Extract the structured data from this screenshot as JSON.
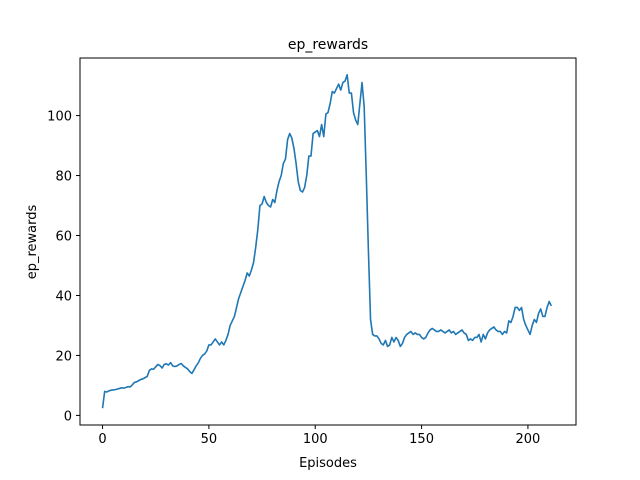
{
  "chart_data": {
    "type": "line",
    "title": "ep_rewards",
    "x_label": "Episodes",
    "y_label": "ep_rewards",
    "xlim": [
      -10.6,
      222.6
    ],
    "ylim": [
      -3.2,
      119.2
    ],
    "xticks": [
      0,
      50,
      100,
      150,
      200
    ],
    "yticks": [
      0,
      20,
      40,
      60,
      80,
      100
    ],
    "x": [
      0,
      1,
      2,
      3,
      4,
      5,
      6,
      7,
      8,
      9,
      10,
      11,
      12,
      13,
      14,
      15,
      16,
      17,
      18,
      19,
      20,
      21,
      22,
      23,
      24,
      25,
      26,
      27,
      28,
      29,
      30,
      31,
      32,
      33,
      34,
      35,
      36,
      37,
      38,
      39,
      40,
      41,
      42,
      43,
      44,
      45,
      46,
      47,
      48,
      49,
      50,
      51,
      52,
      53,
      54,
      55,
      56,
      57,
      58,
      59,
      60,
      61,
      62,
      63,
      64,
      65,
      66,
      67,
      68,
      69,
      70,
      71,
      72,
      73,
      74,
      75,
      76,
      77,
      78,
      79,
      80,
      81,
      82,
      83,
      84,
      85,
      86,
      87,
      88,
      89,
      90,
      91,
      92,
      93,
      94,
      95,
      96,
      97,
      98,
      99,
      100,
      101,
      102,
      103,
      104,
      105,
      106,
      107,
      108,
      109,
      110,
      111,
      112,
      113,
      114,
      115,
      116,
      117,
      118,
      119,
      120,
      121,
      122,
      123,
      124,
      125,
      126,
      127,
      128,
      129,
      130,
      131,
      132,
      133,
      134,
      135,
      136,
      137,
      138,
      139,
      140,
      141,
      142,
      143,
      144,
      145,
      146,
      147,
      148,
      149,
      150,
      151,
      152,
      153,
      154,
      155,
      156,
      157,
      158,
      159,
      160,
      161,
      162,
      163,
      164,
      165,
      166,
      167,
      168,
      169,
      170,
      171,
      172,
      173,
      174,
      175,
      176,
      177,
      178,
      179,
      180,
      181,
      182,
      183,
      184,
      185,
      186,
      187,
      188,
      189,
      190,
      191,
      192,
      193,
      194,
      195,
      196,
      197,
      198,
      199,
      200,
      201,
      202,
      203,
      204,
      205,
      206,
      207,
      208,
      209,
      210,
      211
    ],
    "series": [
      {
        "color": "#1f77b4",
        "values": [
          2.4,
          8,
          7.8,
          8.2,
          8.4,
          8.5,
          8.6,
          8.8,
          9,
          9.2,
          9.1,
          9.3,
          9.6,
          9.5,
          10.2,
          11,
          11.2,
          11.6,
          12,
          12.2,
          12.6,
          13,
          15,
          15.5,
          15.4,
          16.2,
          17,
          16.6,
          15.8,
          17,
          17.2,
          16.8,
          17.6,
          16.5,
          16.3,
          16.5,
          17,
          17.3,
          16.5,
          16,
          15.5,
          14.6,
          14,
          15.2,
          16.5,
          17.5,
          19,
          20,
          20.5,
          21.5,
          23.5,
          23.5,
          24.5,
          25.5,
          24.5,
          23.5,
          24.5,
          23.5,
          25,
          27,
          30,
          31.5,
          33,
          36,
          39,
          41,
          43,
          45,
          47.5,
          46.5,
          48.5,
          51,
          56,
          62,
          70,
          70.5,
          73,
          71,
          70,
          69.5,
          72,
          71,
          75,
          78,
          80,
          84,
          85.5,
          92,
          94,
          92.5,
          89,
          84,
          78,
          75,
          74.5,
          76,
          80,
          86.5,
          86.5,
          94,
          94.5,
          95,
          93,
          97,
          93,
          100.5,
          101,
          104,
          108,
          107.5,
          109,
          110.5,
          108.5,
          111,
          111.5,
          113.6,
          107.5,
          107.5,
          101,
          98.5,
          97,
          104,
          111,
          103,
          80,
          55,
          32,
          27,
          26.5,
          26.5,
          25.5,
          24,
          23.5,
          25,
          23,
          23.5,
          26,
          24.5,
          26,
          25,
          23,
          24,
          26,
          27,
          27.5,
          28,
          27,
          27.5,
          27,
          27,
          26,
          25.5,
          26,
          27.5,
          28.5,
          29,
          28.5,
          28,
          28,
          28.5,
          28,
          27.5,
          28,
          28.5,
          27.5,
          28,
          27,
          27.5,
          28,
          28.5,
          27.5,
          27,
          25,
          25.5,
          25,
          26,
          26,
          27,
          24.5,
          27,
          25.5,
          27.5,
          28.5,
          29,
          29.5,
          28.5,
          28,
          28,
          27,
          28,
          27.5,
          31.5,
          31,
          33,
          36,
          36,
          35,
          36,
          32,
          30,
          28.5,
          27,
          30,
          32,
          31,
          34,
          35.5,
          33,
          33,
          36,
          38,
          36.5
        ]
      }
    ]
  }
}
